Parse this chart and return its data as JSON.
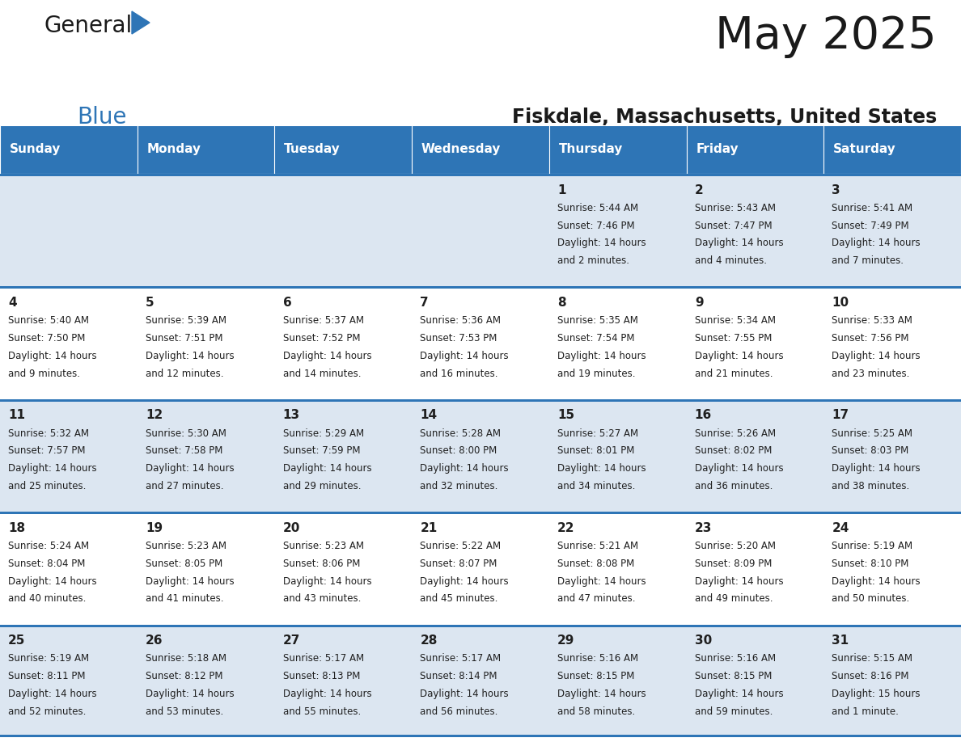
{
  "title": "May 2025",
  "subtitle": "Fiskdale, Massachusetts, United States",
  "days_of_week": [
    "Sunday",
    "Monday",
    "Tuesday",
    "Wednesday",
    "Thursday",
    "Friday",
    "Saturday"
  ],
  "header_bg": "#2e75b6",
  "header_text": "#ffffff",
  "row_bg_even": "#dce6f1",
  "row_bg_odd": "#ffffff",
  "cell_border_color": "#2e75b6",
  "day_num_color": "#1f1f1f",
  "text_color": "#1f1f1f",
  "title_color": "#1a1a1a",
  "subtitle_color": "#1a1a1a",
  "logo_general_color": "#1a1a1a",
  "logo_blue_color": "#2e75b6",
  "logo_triangle_color": "#2e75b6",
  "calendar": [
    [
      null,
      null,
      null,
      null,
      {
        "day": 1,
        "sunrise": "5:44 AM",
        "sunset": "7:46 PM",
        "daylight": "14 hours and 2 minutes."
      },
      {
        "day": 2,
        "sunrise": "5:43 AM",
        "sunset": "7:47 PM",
        "daylight": "14 hours and 4 minutes."
      },
      {
        "day": 3,
        "sunrise": "5:41 AM",
        "sunset": "7:49 PM",
        "daylight": "14 hours and 7 minutes."
      }
    ],
    [
      {
        "day": 4,
        "sunrise": "5:40 AM",
        "sunset": "7:50 PM",
        "daylight": "14 hours and 9 minutes."
      },
      {
        "day": 5,
        "sunrise": "5:39 AM",
        "sunset": "7:51 PM",
        "daylight": "14 hours and 12 minutes."
      },
      {
        "day": 6,
        "sunrise": "5:37 AM",
        "sunset": "7:52 PM",
        "daylight": "14 hours and 14 minutes."
      },
      {
        "day": 7,
        "sunrise": "5:36 AM",
        "sunset": "7:53 PM",
        "daylight": "14 hours and 16 minutes."
      },
      {
        "day": 8,
        "sunrise": "5:35 AM",
        "sunset": "7:54 PM",
        "daylight": "14 hours and 19 minutes."
      },
      {
        "day": 9,
        "sunrise": "5:34 AM",
        "sunset": "7:55 PM",
        "daylight": "14 hours and 21 minutes."
      },
      {
        "day": 10,
        "sunrise": "5:33 AM",
        "sunset": "7:56 PM",
        "daylight": "14 hours and 23 minutes."
      }
    ],
    [
      {
        "day": 11,
        "sunrise": "5:32 AM",
        "sunset": "7:57 PM",
        "daylight": "14 hours and 25 minutes."
      },
      {
        "day": 12,
        "sunrise": "5:30 AM",
        "sunset": "7:58 PM",
        "daylight": "14 hours and 27 minutes."
      },
      {
        "day": 13,
        "sunrise": "5:29 AM",
        "sunset": "7:59 PM",
        "daylight": "14 hours and 29 minutes."
      },
      {
        "day": 14,
        "sunrise": "5:28 AM",
        "sunset": "8:00 PM",
        "daylight": "14 hours and 32 minutes."
      },
      {
        "day": 15,
        "sunrise": "5:27 AM",
        "sunset": "8:01 PM",
        "daylight": "14 hours and 34 minutes."
      },
      {
        "day": 16,
        "sunrise": "5:26 AM",
        "sunset": "8:02 PM",
        "daylight": "14 hours and 36 minutes."
      },
      {
        "day": 17,
        "sunrise": "5:25 AM",
        "sunset": "8:03 PM",
        "daylight": "14 hours and 38 minutes."
      }
    ],
    [
      {
        "day": 18,
        "sunrise": "5:24 AM",
        "sunset": "8:04 PM",
        "daylight": "14 hours and 40 minutes."
      },
      {
        "day": 19,
        "sunrise": "5:23 AM",
        "sunset": "8:05 PM",
        "daylight": "14 hours and 41 minutes."
      },
      {
        "day": 20,
        "sunrise": "5:23 AM",
        "sunset": "8:06 PM",
        "daylight": "14 hours and 43 minutes."
      },
      {
        "day": 21,
        "sunrise": "5:22 AM",
        "sunset": "8:07 PM",
        "daylight": "14 hours and 45 minutes."
      },
      {
        "day": 22,
        "sunrise": "5:21 AM",
        "sunset": "8:08 PM",
        "daylight": "14 hours and 47 minutes."
      },
      {
        "day": 23,
        "sunrise": "5:20 AM",
        "sunset": "8:09 PM",
        "daylight": "14 hours and 49 minutes."
      },
      {
        "day": 24,
        "sunrise": "5:19 AM",
        "sunset": "8:10 PM",
        "daylight": "14 hours and 50 minutes."
      }
    ],
    [
      {
        "day": 25,
        "sunrise": "5:19 AM",
        "sunset": "8:11 PM",
        "daylight": "14 hours and 52 minutes."
      },
      {
        "day": 26,
        "sunrise": "5:18 AM",
        "sunset": "8:12 PM",
        "daylight": "14 hours and 53 minutes."
      },
      {
        "day": 27,
        "sunrise": "5:17 AM",
        "sunset": "8:13 PM",
        "daylight": "14 hours and 55 minutes."
      },
      {
        "day": 28,
        "sunrise": "5:17 AM",
        "sunset": "8:14 PM",
        "daylight": "14 hours and 56 minutes."
      },
      {
        "day": 29,
        "sunrise": "5:16 AM",
        "sunset": "8:15 PM",
        "daylight": "14 hours and 58 minutes."
      },
      {
        "day": 30,
        "sunrise": "5:16 AM",
        "sunset": "8:15 PM",
        "daylight": "14 hours and 59 minutes."
      },
      {
        "day": 31,
        "sunrise": "5:15 AM",
        "sunset": "8:16 PM",
        "daylight": "15 hours and 1 minute."
      }
    ]
  ]
}
